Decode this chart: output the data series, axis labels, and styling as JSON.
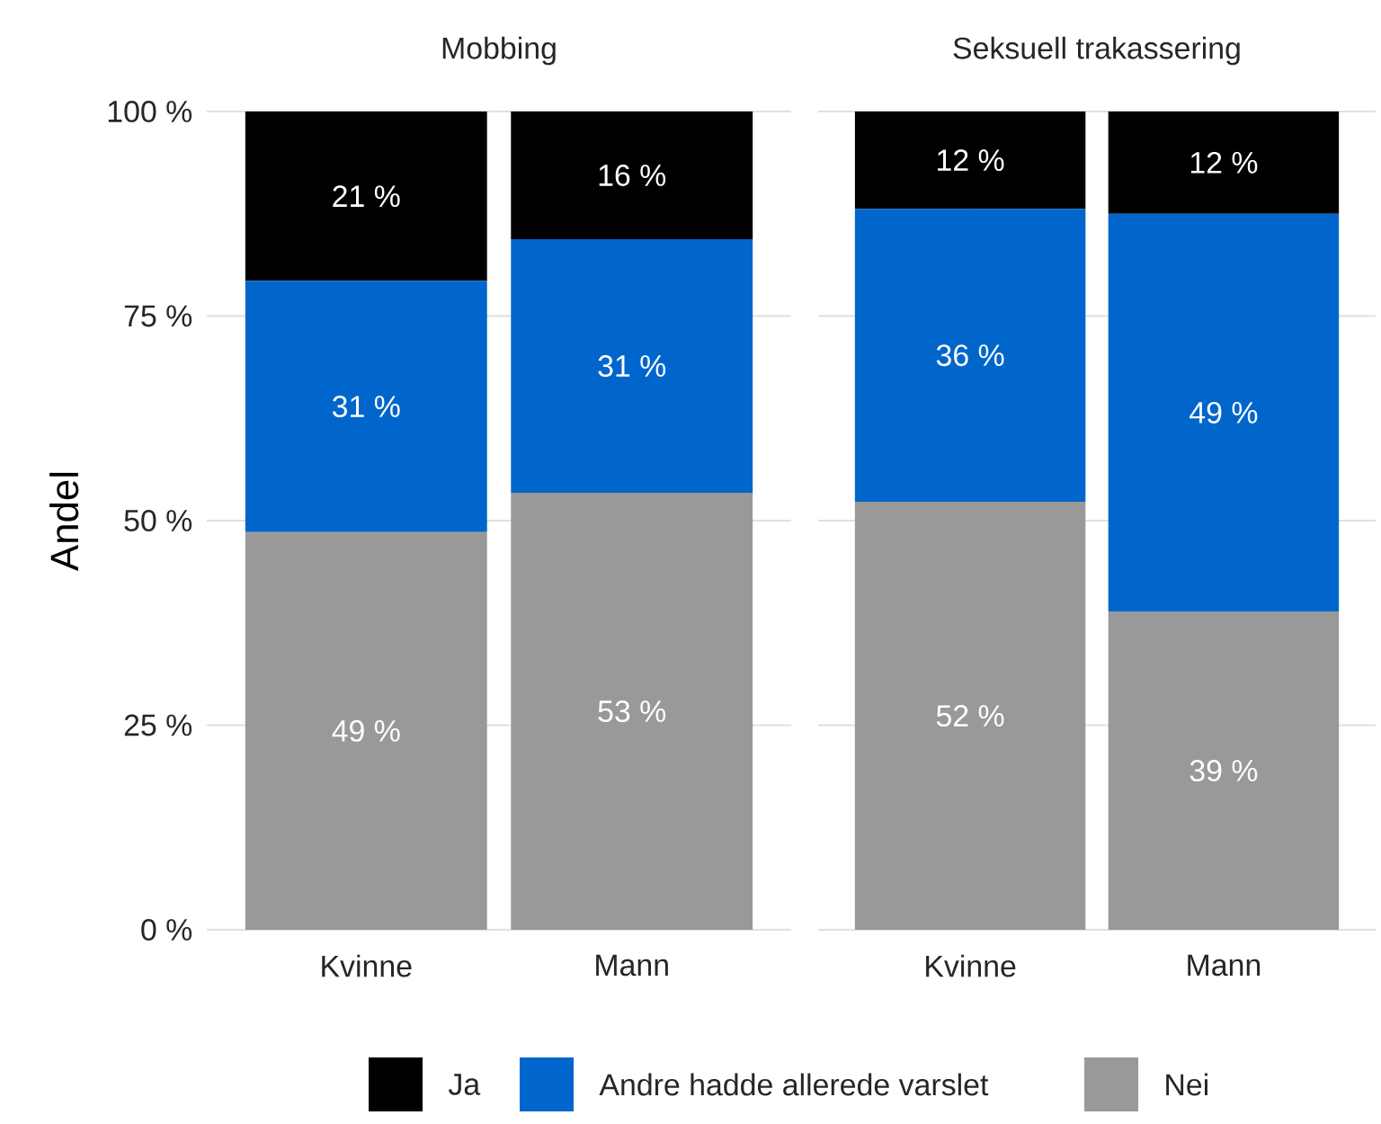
{
  "chart_data": [
    {
      "type": "bar",
      "title": "Mobbing",
      "ylabel": "Andel",
      "categories": [
        "Kvinne",
        "Mann"
      ],
      "stacked": true,
      "grid": true,
      "legend": "bottom",
      "ylim": [
        0,
        100
      ],
      "yticks": [
        {
          "value": 0,
          "label": "0 %"
        },
        {
          "value": 25,
          "label": "25 %"
        },
        {
          "value": 50,
          "label": "50 %"
        },
        {
          "value": 75,
          "label": "75 %"
        },
        {
          "value": 100,
          "label": "100 %"
        }
      ],
      "series": [
        {
          "name": "Nei",
          "color": "#999999",
          "values": [
            48.6,
            53.4
          ],
          "value_labels": [
            "49 %",
            "53 %"
          ]
        },
        {
          "name": "Andre hadde allerede varslet",
          "color": "#0066cc",
          "values": [
            30.7,
            31.0
          ],
          "value_labels": [
            "31 %",
            "31 %"
          ]
        },
        {
          "name": "Ja",
          "color": "#000000",
          "values": [
            20.7,
            15.6
          ],
          "value_labels": [
            "21 %",
            "16 %"
          ]
        }
      ]
    },
    {
      "type": "bar",
      "title": "Seksuell trakassering",
      "categories": [
        "Kvinne",
        "Mann"
      ],
      "stacked": true,
      "grid": true,
      "tick_labels": "x",
      "ylim": [
        0,
        100
      ],
      "yticks": [
        {
          "value": 0,
          "label": null
        },
        {
          "value": 25,
          "label": null
        },
        {
          "value": 50,
          "label": null
        },
        {
          "value": 75,
          "label": null
        },
        {
          "value": 100,
          "label": null
        }
      ],
      "series": [
        {
          "color": "#999999",
          "values": [
            52.3,
            38.9
          ],
          "value_labels": [
            "52 %",
            "39 %"
          ]
        },
        {
          "color": "#0066cc",
          "values": [
            35.8,
            48.6
          ],
          "value_labels": [
            "36 %",
            "49 %"
          ]
        },
        {
          "color": "#000000",
          "values": [
            11.9,
            12.5
          ],
          "value_labels": [
            "12 %",
            "12 %"
          ]
        }
      ]
    }
  ]
}
